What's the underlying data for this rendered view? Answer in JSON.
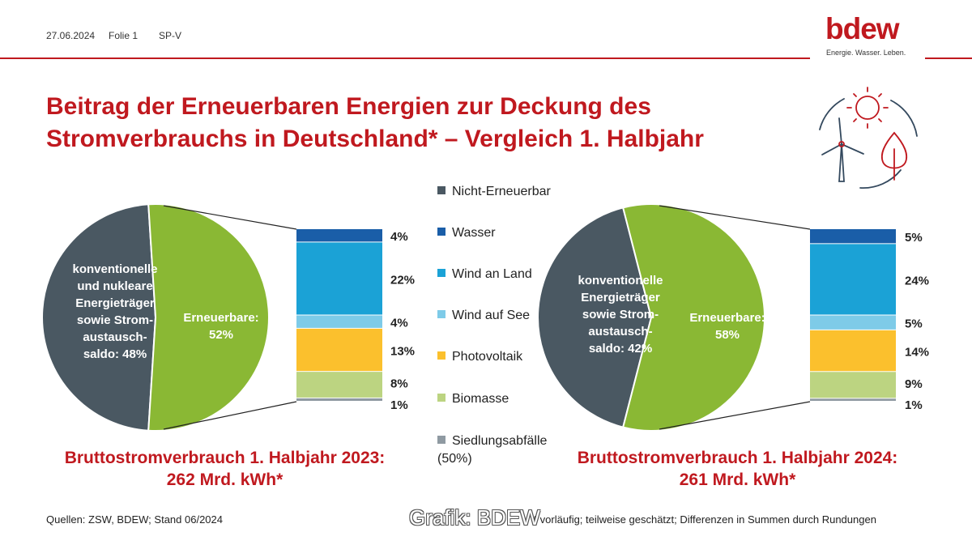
{
  "header": {
    "date": "27.06.2024",
    "slide": "Folie 1",
    "dept": "SP-V",
    "logo_text": "bdew",
    "logo_tagline": "Energie. Wasser. Leben."
  },
  "title_line1": "Beitrag der Erneuerbaren Energien zur Deckung des",
  "title_line2": "Stromverbrauchs in Deutschland* – Vergleich 1. Halbjahr",
  "colors": {
    "nicht_erneuerbar": "#4a5862",
    "erneuerbar": "#8ab834",
    "wasser": "#1a5ea8",
    "wind_an_land": "#1ba2d6",
    "wind_auf_see": "#7ecbe8",
    "photovoltaik": "#fbc02d",
    "biomasse": "#bcd481",
    "siedlungsabfaelle": "#8f9aa2",
    "accent": "#c0191f"
  },
  "legend": [
    {
      "label": "Nicht-Erneuerbar",
      "color": "#4a5862"
    },
    {
      "label": "Wasser",
      "color": "#1a5ea8"
    },
    {
      "label": "Wind an Land",
      "color": "#1ba2d6"
    },
    {
      "label": "Wind auf See",
      "color": "#7ecbe8"
    },
    {
      "label": "Photovoltaik",
      "color": "#fbc02d"
    },
    {
      "label": "Biomasse",
      "color": "#bcd481"
    },
    {
      "label": "Siedlungsabfälle (50%)",
      "color": "#8f9aa2"
    }
  ],
  "chart_data": [
    {
      "type": "pie",
      "slices": [
        {
          "name": "konventionelle und nukleare Energieträger sowie Strom-austausch-saldo: 48%",
          "value": 48
        },
        {
          "name": "Erneuerbare: 52%",
          "value": 52
        }
      ],
      "label_lines": {
        "nicht_erneuerbar": [
          "konventionelle",
          "und nukleare",
          "Energieträger",
          "sowie Strom-",
          "austausch-",
          "saldo: 48%"
        ],
        "erneuerbar": [
          "Erneuerbare:",
          "52%"
        ]
      },
      "breakdown": {
        "type": "bar",
        "stacked": true,
        "categories": [
          "Wasser",
          "Wind an Land",
          "Wind auf See",
          "Photovoltaik",
          "Biomasse",
          "Siedlungsabfälle"
        ],
        "values": [
          4,
          22,
          4,
          13,
          8,
          1
        ],
        "labels": [
          "4%",
          "22%",
          "4%",
          "13%",
          "8%",
          "1%"
        ]
      },
      "total_line1": "Bruttostromverbrauch 1. Halbjahr 2023:",
      "total_line2": "262 Mrd. kWh*"
    },
    {
      "type": "pie",
      "slices": [
        {
          "name": "konventionelle Energieträger sowie Strom-austausch-saldo: 42%",
          "value": 42
        },
        {
          "name": "Erneuerbare: 58%",
          "value": 58
        }
      ],
      "label_lines": {
        "nicht_erneuerbar": [
          "konventionelle",
          "Energieträger",
          "sowie Strom-",
          "austausch-",
          "saldo: 42%"
        ],
        "erneuerbar": [
          "Erneuerbare:",
          "58%"
        ]
      },
      "breakdown": {
        "type": "bar",
        "stacked": true,
        "categories": [
          "Wasser",
          "Wind an Land",
          "Wind auf See",
          "Photovoltaik",
          "Biomasse",
          "Siedlungsabfälle"
        ],
        "values": [
          5,
          24,
          5,
          14,
          9,
          1
        ],
        "labels": [
          "5%",
          "24%",
          "5%",
          "14%",
          "9%",
          "1%"
        ]
      },
      "total_line1": "Bruttostromverbrauch 1. Halbjahr 2024:",
      "total_line2": "261 Mrd. kWh*"
    }
  ],
  "footer": {
    "source": "Quellen: ZSW, BDEW; Stand 06/2024",
    "note": "* vorläufig; teilweise geschätzt; Differenzen in Summen durch Rundungen",
    "watermark": "Grafik: BDEW"
  }
}
